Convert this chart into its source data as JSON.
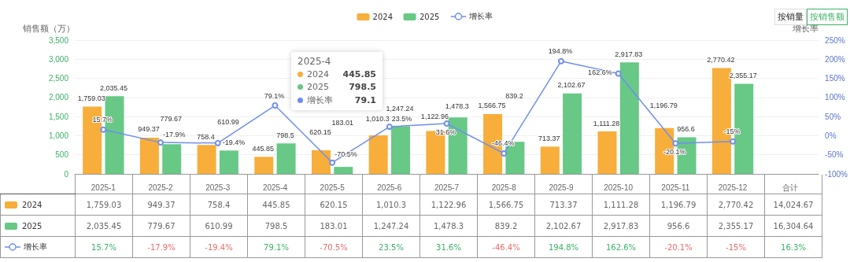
{
  "chart_data": {
    "type": "bar",
    "categories": [
      "2025-1",
      "2025-2",
      "2025-3",
      "2025-4",
      "2025-5",
      "2025-6",
      "2025-7",
      "2025-8",
      "2025-9",
      "2025-10",
      "2025-11",
      "2025-12",
      "合计"
    ],
    "ylabel": "销售额（万）",
    "y2label": "增长率",
    "ylim": [
      0,
      3500
    ],
    "yticks": [
      0,
      {
        "value": 500,
        "label": "500"
      },
      {
        "value": 1000,
        "label": "1,000"
      },
      {
        "value": 1500,
        "label": "1,500"
      },
      {
        "value": 2000,
        "label": "2,000"
      },
      {
        "value": 2500,
        "label": "2,500"
      },
      {
        "value": 3000,
        "label": "3,000"
      },
      {
        "value": 3500,
        "label": "3,500"
      }
    ],
    "y2lim": [
      -100,
      250
    ],
    "y2ticks": [
      {
        "value": -100,
        "label": "-100%"
      },
      {
        "value": -50,
        "label": "-50%"
      },
      {
        "value": 0,
        "label": "0%"
      },
      {
        "value": 50,
        "label": "50%"
      },
      {
        "value": 100,
        "label": "100%"
      },
      {
        "value": 150,
        "label": "150%"
      },
      {
        "value": 200,
        "label": "200%"
      },
      {
        "value": 250,
        "label": "250%"
      }
    ],
    "series": [
      {
        "name": "2024",
        "color": "#f7ae3b",
        "values": [
          1759.03,
          949.37,
          758.4,
          445.85,
          620.15,
          1010.3,
          1122.96,
          1566.75,
          713.37,
          1111.28,
          1196.79,
          2770.42,
          null
        ],
        "value_labels": [
          "1,759.03",
          "949.37",
          "758.4",
          "445.85",
          "620.15",
          "1,010.3",
          "1,122.96",
          "1,566.75",
          "713.37",
          "1,111.28",
          "1,196.79",
          "2,770.42",
          null
        ]
      },
      {
        "name": "2025",
        "color": "#68c886",
        "values": [
          2035.45,
          779.67,
          610.99,
          798.5,
          183.01,
          1247.24,
          1478.3,
          839.2,
          2102.67,
          2917.83,
          956.6,
          2355.17,
          null
        ],
        "value_labels": [
          "2,035.45",
          "779.67",
          "610.99",
          "798.5",
          "183.01",
          "1,247.24",
          "1,478.3",
          "839.2",
          "2,102.67",
          "2,917.83",
          "956.6",
          "2,355.17",
          null
        ]
      },
      {
        "name": "增长率",
        "type": "line",
        "axis": "y2",
        "color": "#6f8ef0",
        "values": [
          15.7,
          -17.9,
          -19.4,
          79.1,
          -70.5,
          23.5,
          31.6,
          -46.4,
          194.8,
          162.6,
          -20.1,
          -15,
          null
        ],
        "value_labels": [
          "15.7%",
          "-17.9%",
          "-19.4%",
          "79.1%",
          "-70.5%",
          "23.5%",
          "31.6%",
          "-46.4%",
          "194.8%",
          "162.6%",
          "-20.1%",
          "-15%",
          null
        ]
      }
    ],
    "marker": "circle",
    "line_style": "solid",
    "grid": "y",
    "legend": "top",
    "annotations": [
      "按销量",
      "按销售额",
      "2025-4",
      "445.85",
      "798.5",
      "79.1",
      "14,024.67",
      "16,304.64",
      "16.3%"
    ]
  }
}
